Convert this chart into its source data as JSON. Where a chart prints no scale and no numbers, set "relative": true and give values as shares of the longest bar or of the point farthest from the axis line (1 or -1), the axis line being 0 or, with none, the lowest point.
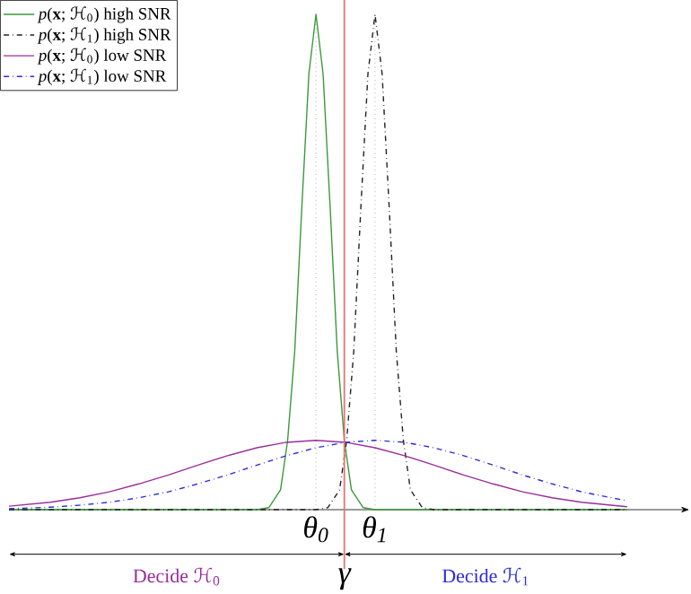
{
  "chart_data": {
    "type": "line",
    "relative": true,
    "legend": "top left",
    "grid": "x",
    "marker": "none",
    "xlim": [
      -5.2,
      6.2
    ],
    "xticks": [
      {
        "value": 0,
        "label": "θ$_{0}$"
      },
      {
        "value": 1,
        "label": "θ$_{1}$"
      }
    ],
    "ref_lines": [
      {
        "axis": "x",
        "value": 0.48,
        "label": "γ",
        "color": "#e57373"
      }
    ],
    "annotations": [
      "Decide ℋ$_{0}$",
      "Decide ℋ$_{1}$"
    ],
    "series": [
      {
        "name": "*p*(**x**; ℋ$_{0}$) high SNR",
        "color": "#3a9a3a",
        "line_style": "solid",
        "x": [
          -5.2,
          -1,
          -0.8,
          -0.6,
          -0.48,
          -0.36,
          -0.24,
          -0.12,
          0,
          0.12,
          0.24,
          0.36,
          0.48,
          0.6,
          0.8,
          1,
          5.27
        ],
        "values": [
          0,
          0,
          0.004,
          0.04,
          0.14,
          0.32,
          0.61,
          0.88,
          1,
          0.88,
          0.61,
          0.32,
          0.14,
          0.04,
          0.004,
          0,
          0
        ]
      },
      {
        "name": "*p*(**x**; ℋ$_{1}$) high SNR",
        "color": "#222222",
        "line_style": "dashed",
        "x": [
          -5.2,
          0,
          0.2,
          0.4,
          0.52,
          0.64,
          0.76,
          0.88,
          1,
          1.12,
          1.24,
          1.36,
          1.48,
          1.6,
          1.8,
          2,
          5.27
        ],
        "values": [
          0,
          0,
          0.004,
          0.04,
          0.14,
          0.32,
          0.61,
          0.88,
          1,
          0.88,
          0.61,
          0.32,
          0.14,
          0.04,
          0.004,
          0,
          0
        ]
      },
      {
        "name": "*p*(**x**; ℋ$_{0}$) low SNR",
        "color": "#9b2d9b",
        "line_style": "solid",
        "x": [
          -5.2,
          -4.5,
          -4,
          -3.5,
          -3,
          -2.5,
          -2,
          -1.5,
          -1,
          -0.5,
          0,
          0.5,
          1,
          1.5,
          2,
          2.5,
          3,
          3.5,
          4,
          4.5,
          5,
          5.27
        ],
        "values": [
          0.007,
          0.015,
          0.024,
          0.036,
          0.052,
          0.07,
          0.09,
          0.109,
          0.125,
          0.136,
          0.14,
          0.136,
          0.125,
          0.109,
          0.09,
          0.07,
          0.052,
          0.036,
          0.024,
          0.015,
          0.009,
          0.006
        ]
      },
      {
        "name": "*p*(**x**; ℋ$_{1}$) low SNR",
        "color": "#2a2ae0",
        "line_style": "dashed",
        "x": [
          -5.2,
          -4.5,
          -4,
          -3.5,
          -3,
          -2.5,
          -2,
          -1.5,
          -1,
          -0.5,
          0,
          0.5,
          1,
          1.5,
          2,
          2.5,
          3,
          3.5,
          4,
          4.5,
          5,
          5.27
        ],
        "values": [
          0.002,
          0.005,
          0.009,
          0.015,
          0.024,
          0.036,
          0.052,
          0.07,
          0.09,
          0.109,
          0.125,
          0.136,
          0.14,
          0.136,
          0.125,
          0.109,
          0.09,
          0.07,
          0.052,
          0.036,
          0.024,
          0.018
        ]
      }
    ]
  }
}
